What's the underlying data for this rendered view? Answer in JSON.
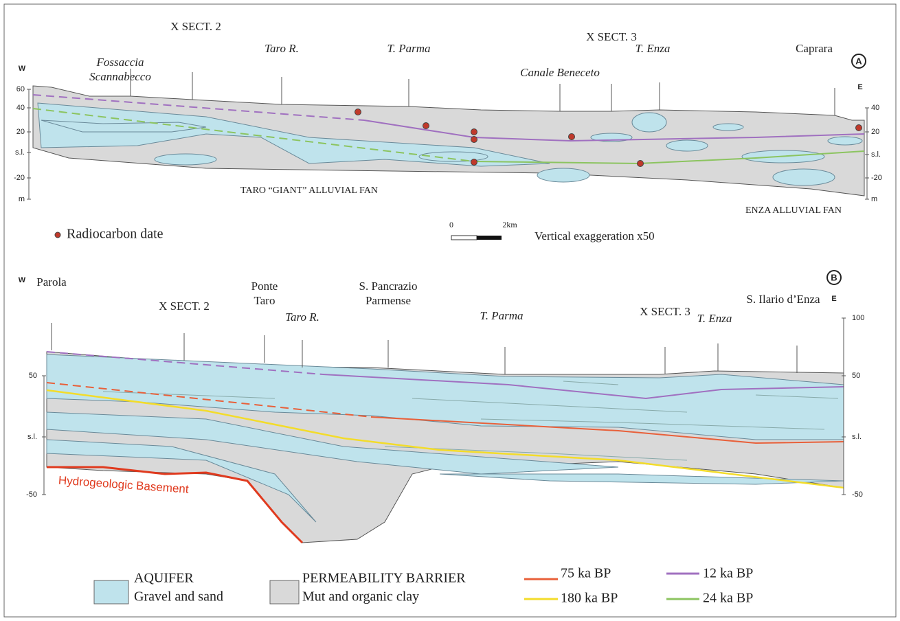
{
  "panel_a": {
    "badge": "A",
    "west": "W",
    "east": "E",
    "places": [
      {
        "lines": [
          "Fossaccia",
          "Scannabecco"
        ]
      },
      {
        "lines": [
          "X SECT. 2"
        ]
      },
      {
        "lines": [
          "Taro R."
        ]
      },
      {
        "lines": [
          "T. Parma"
        ]
      },
      {
        "lines": [
          "X SECT. 3"
        ]
      },
      {
        "lines": [
          "Canale Beneceto"
        ]
      },
      {
        "lines": [
          "T. Enza"
        ]
      },
      {
        "lines": [
          "Caprara"
        ]
      }
    ],
    "left_axis": [
      "60",
      "40",
      "20",
      "s.l.",
      "-20",
      "m"
    ],
    "right_axis": [
      "40",
      "20",
      "s.l.",
      "-20",
      "m"
    ],
    "fan_labels": [
      "TARO “GIANT” ALLUVIAL FAN",
      "ENZA ALLUVIAL FAN"
    ],
    "radiocarbon": "Radiocarbon date",
    "scale": [
      "0",
      "2km"
    ],
    "exaggeration": "Vertical exaggeration  x50"
  },
  "panel_b": {
    "badge": "B",
    "west": "W",
    "east": "E",
    "places": [
      {
        "lines": [
          "Parola"
        ]
      },
      {
        "lines": [
          "X SECT. 2"
        ]
      },
      {
        "lines": [
          "Ponte",
          "Taro"
        ]
      },
      {
        "lines": [
          "Taro R."
        ]
      },
      {
        "lines": [
          "S. Pancrazio",
          "Parmense"
        ]
      },
      {
        "lines": [
          "T. Parma"
        ]
      },
      {
        "lines": [
          "X SECT. 3"
        ]
      },
      {
        "lines": [
          "T. Enza"
        ]
      },
      {
        "lines": [
          "S. Ilario d’Enza"
        ]
      }
    ],
    "left_axis": [
      "50",
      "s.l.",
      "-50"
    ],
    "right_axis": [
      "100",
      "50",
      "s.l.",
      "-50"
    ],
    "basement": "Hydrogeologic Basement"
  },
  "legend": {
    "aquifer": [
      "AQUIFER",
      "Gravel and sand"
    ],
    "barrier": [
      "PERMEABILITY BARRIER",
      "Mut and organic clay"
    ],
    "lines": [
      "75 ka BP",
      "180 ka BP",
      "12 ka BP",
      "24 ka BP"
    ]
  }
}
